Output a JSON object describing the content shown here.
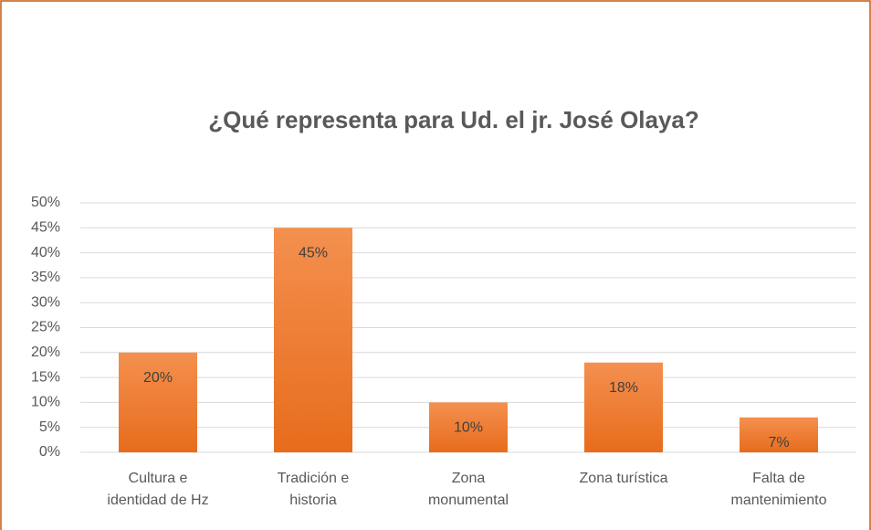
{
  "chart_data": {
    "type": "bar",
    "title": "¿Qué representa para Ud. el jr. José Olaya?",
    "categories": [
      "Cultura e identidad de Hz",
      "Tradición e historia",
      "Zona monumental",
      "Zona turística",
      "Falta de mantenimiento"
    ],
    "values": [
      20,
      45,
      10,
      18,
      7
    ],
    "value_labels": [
      "20%",
      "45%",
      "10%",
      "18%",
      "7%"
    ],
    "color": "#ed7d31",
    "ylim": [
      0,
      50
    ],
    "yticks": [
      {
        "value": 0,
        "label": "0%"
      },
      {
        "value": 5,
        "label": "5%"
      },
      {
        "value": 10,
        "label": "10%"
      },
      {
        "value": 15,
        "label": "15%"
      },
      {
        "value": 20,
        "label": "20%"
      },
      {
        "value": 25,
        "label": "25%"
      },
      {
        "value": 30,
        "label": "30%"
      },
      {
        "value": 35,
        "label": "35%"
      },
      {
        "value": 40,
        "label": "40%"
      },
      {
        "value": 45,
        "label": "45%"
      },
      {
        "value": 50,
        "label": "50%"
      }
    ],
    "grid": true
  }
}
